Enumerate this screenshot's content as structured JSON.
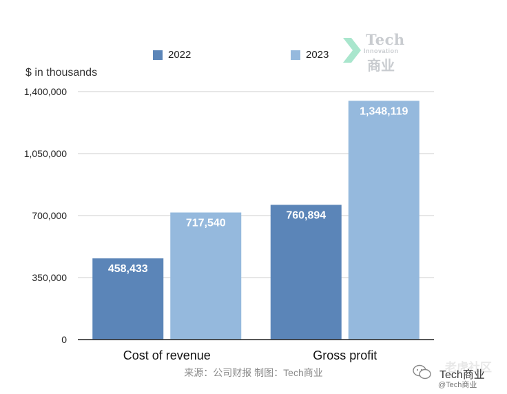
{
  "chart_data": {
    "type": "bar",
    "categories": [
      "Cost of revenue",
      "Gross profit"
    ],
    "series": [
      {
        "name": "2022",
        "color": "#5b85b8",
        "values": [
          458433,
          760894
        ],
        "labels": [
          "458,433",
          "760,894"
        ]
      },
      {
        "name": "2023",
        "color": "#95b9dd",
        "values": [
          717540,
          1348119
        ],
        "labels": [
          "717,540",
          "1,348,119"
        ]
      }
    ],
    "title": "",
    "xlabel": "",
    "ylabel": "$ in thousands",
    "ylim": [
      0,
      1400000
    ],
    "yticks": [
      0,
      350000,
      700000,
      1050000,
      1400000
    ],
    "ytick_labels": [
      "0",
      "350,000",
      "700,000",
      "1,050,000",
      "1,400,000"
    ],
    "grid": true,
    "legend": "top"
  },
  "logo": {
    "title": "Tech",
    "subtitle": "Innovation",
    "cn": "商业"
  },
  "source": "来源：公司财报 制图：Tech商业",
  "watermark": {
    "top": "老虎社区",
    "name": "Tech商业",
    "handle": "@Tech商业"
  }
}
